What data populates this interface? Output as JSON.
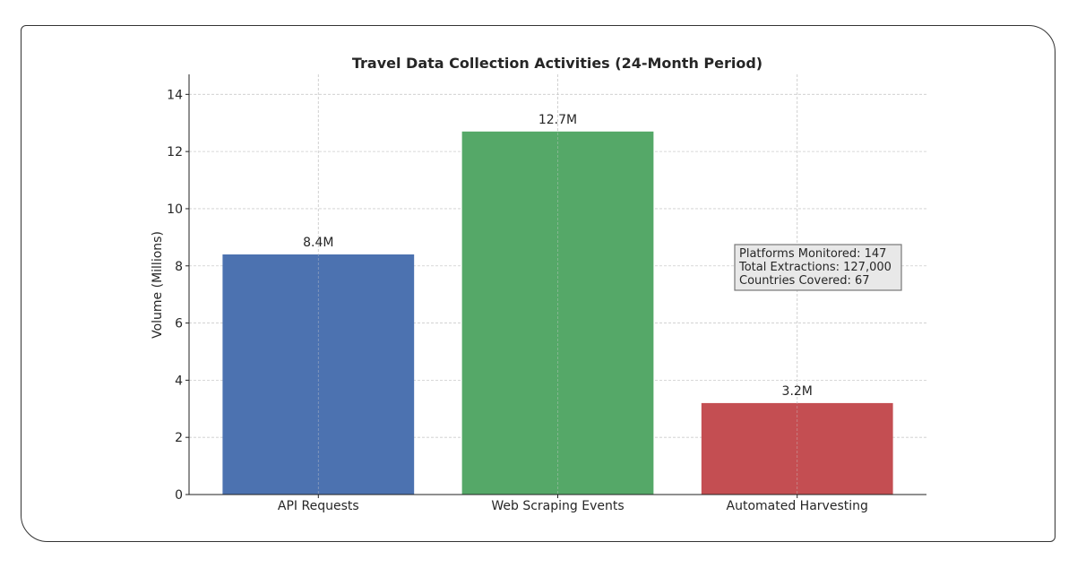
{
  "chart_data": {
    "type": "bar",
    "title": "Travel Data Collection Activities (24-Month Period)",
    "xlabel": "",
    "ylabel": "Volume (Millions)",
    "categories": [
      "API Requests",
      "Web Scraping Events",
      "Automated Harvesting"
    ],
    "values": [
      8.4,
      12.7,
      3.2
    ],
    "data_labels": [
      "8.4M",
      "12.7M",
      "3.2M"
    ],
    "colors": [
      "#4c72b0",
      "#55a868",
      "#c44e52"
    ],
    "ylim": [
      0,
      14.7
    ],
    "yticks": [
      0,
      2,
      4,
      6,
      8,
      10,
      12,
      14
    ],
    "grid": true,
    "annotation": {
      "lines": [
        "Platforms Monitored: 147",
        "Total Extractions: 127,000",
        "Countries Covered: 67"
      ],
      "placement": "right-middle"
    }
  }
}
